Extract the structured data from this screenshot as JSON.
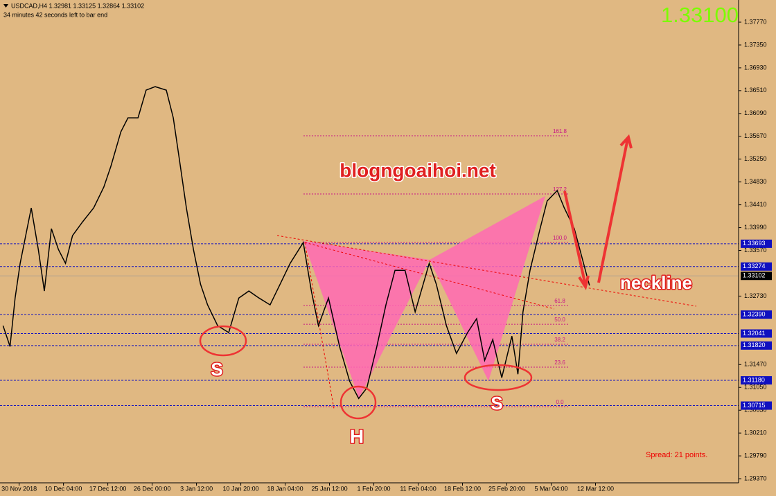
{
  "header": {
    "symbol_line": "USDCAD,H4  1.32981 1.33125 1.32864 1.33102",
    "timer": "34 minutes 42 seconds left to bar end",
    "big_price": "1.33100"
  },
  "chart_data": {
    "type": "line",
    "color": "#000000",
    "x": [
      -16,
      -9,
      -4,
      1,
      12,
      19,
      25,
      32,
      39,
      46,
      53,
      63,
      74,
      84,
      91,
      101,
      108,
      118,
      126,
      135,
      146,
      153,
      159,
      166,
      173,
      180,
      187,
      197,
      208,
      218,
      228,
      238,
      249,
      259,
      269,
      282,
      290,
      297,
      307,
      318,
      328,
      337,
      345,
      355,
      364,
      373,
      383,
      393,
      401,
      407,
      414,
      424,
      434,
      445,
      454,
      462,
      470,
      479,
      489,
      495,
      500,
      507,
      517,
      524,
      534,
      541,
      551,
      562,
      566
    ],
    "values": [
      1.32186,
      1.31803,
      1.32695,
      1.33333,
      1.34353,
      1.33588,
      1.32823,
      1.3397,
      1.33588,
      1.33333,
      1.33843,
      1.34098,
      1.34353,
      1.34735,
      1.35118,
      1.35755,
      1.3601,
      1.3601,
      1.3652,
      1.36584,
      1.3652,
      1.3601,
      1.35245,
      1.34353,
      1.33588,
      1.3295,
      1.32568,
      1.32186,
      1.32058,
      1.32695,
      1.32823,
      1.32695,
      1.32568,
      1.3295,
      1.33333,
      1.33715,
      1.32823,
      1.32186,
      1.32695,
      1.31803,
      1.31165,
      1.30847,
      1.31038,
      1.31803,
      1.32568,
      1.33205,
      1.33205,
      1.3244,
      1.3295,
      1.33333,
      1.3295,
      1.32186,
      1.31675,
      1.32058,
      1.32313,
      1.31548,
      1.3193,
      1.31229,
      1.31994,
      1.31293,
      1.3244,
      1.33205,
      1.3397,
      1.3448,
      1.34672,
      1.34353,
      1.3397,
      1.33205,
      1.32925
    ],
    "xlim": [
      -19,
      714
    ],
    "ylim": [
      1.29294,
      1.38178
    ],
    "xticks": [
      {
        "value": 0,
        "label": "30 Nov 2018"
      },
      {
        "value": 44,
        "label": "10 Dec 04:00"
      },
      {
        "value": 88,
        "label": "17 Dec 12:00"
      },
      {
        "value": 132,
        "label": "26 Dec 00:00"
      },
      {
        "value": 176,
        "label": "3 Jan 12:00"
      },
      {
        "value": 220,
        "label": "10 Jan 20:00"
      },
      {
        "value": 264,
        "label": "18 Jan 04:00"
      },
      {
        "value": 308,
        "label": "25 Jan 12:00"
      },
      {
        "value": 352,
        "label": "1 Feb 20:00"
      },
      {
        "value": 396,
        "label": "11 Feb 04:00"
      },
      {
        "value": 440,
        "label": "18 Feb 12:00"
      },
      {
        "value": 484,
        "label": "25 Feb 20:00"
      },
      {
        "value": 528,
        "label": "5 Mar 04:00"
      },
      {
        "value": 572,
        "label": "12 Mar 12:00"
      }
    ],
    "yticks": [
      {
        "value": 1.3777,
        "label": "1.37770"
      },
      {
        "value": 1.3735,
        "label": "1.37350"
      },
      {
        "value": 1.3693,
        "label": "1.36930"
      },
      {
        "value": 1.3651,
        "label": "1.36510"
      },
      {
        "value": 1.3609,
        "label": "1.36090"
      },
      {
        "value": 1.3567,
        "label": "1.35670"
      },
      {
        "value": 1.3525,
        "label": "1.35250"
      },
      {
        "value": 1.3483,
        "label": "1.34830"
      },
      {
        "value": 1.3441,
        "label": "1.34410"
      },
      {
        "value": 1.3399,
        "label": "1.33990"
      },
      {
        "value": 1.3357,
        "label": "1.33570"
      },
      {
        "value": 1.3273,
        "label": "1.32730"
      },
      {
        "value": 1.3147,
        "label": "1.31470"
      },
      {
        "value": 1.3105,
        "label": "1.31050"
      },
      {
        "value": 1.3063,
        "label": "1.30630"
      },
      {
        "value": 1.3021,
        "label": "1.30210"
      },
      {
        "value": 1.2979,
        "label": "1.29790"
      },
      {
        "value": 1.2937,
        "label": "1.29370"
      }
    ],
    "levels": [
      1.33693,
      1.33274,
      {
        "value": 1.3239,
        "label": "1.32390"
      },
      1.32041,
      {
        "value": 1.3182,
        "label": "1.31820"
      },
      {
        "value": 1.3118,
        "label": "1.31180"
      },
      1.30715
    ],
    "current_price": 1.33102,
    "fib_levels": [
      {
        "value": 1.3568,
        "label": "161.8"
      },
      {
        "value": 1.34609,
        "label": "127.2"
      },
      {
        "value": 1.33717,
        "label": "100.0"
      },
      {
        "value": 1.32557,
        "label": "61.8"
      },
      {
        "value": 1.32212,
        "label": "50.0"
      },
      {
        "value": 1.31843,
        "label": "38.2"
      },
      {
        "value": 1.31422,
        "label": "23.6"
      },
      {
        "value": 1.30696,
        "label": "0.0"
      }
    ]
  },
  "annotations": {
    "site": "blogngoaihoi.net",
    "neckline": "neckline",
    "left_shoulder": "S",
    "head": "H",
    "right_shoulder": "S"
  },
  "footer": {
    "spread": "Spread: 21 points."
  }
}
